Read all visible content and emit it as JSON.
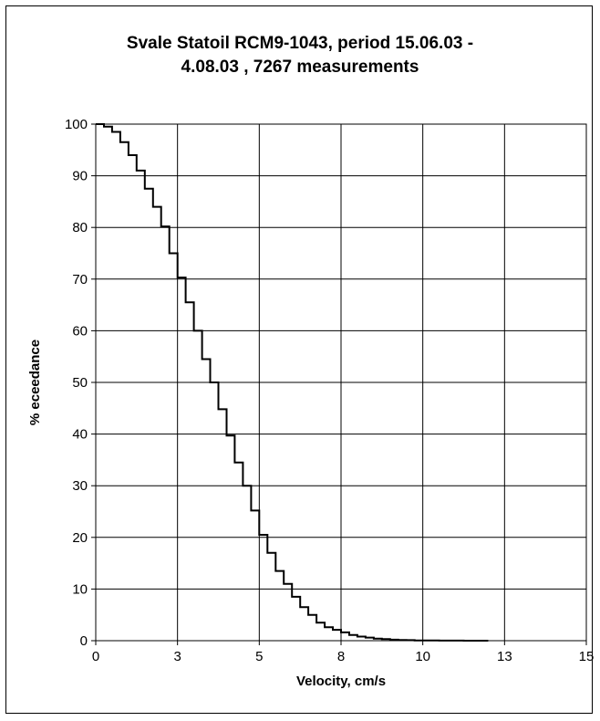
{
  "chart_data": {
    "type": "line",
    "title_line1": "Svale Statoil RCM9-1043,  period 15.06.03 -",
    "title_line2": "4.08.03 , 7267  measurements",
    "xlabel": "Velocity, cm/s",
    "ylabel": "% eceedance",
    "xlim": [
      0,
      15
    ],
    "ylim": [
      0,
      100
    ],
    "x_tick_labels": [
      "0",
      "3",
      "5",
      "8",
      "10",
      "13",
      "15"
    ],
    "x_tick_values": [
      0,
      2.5,
      5,
      7.5,
      10,
      12.5,
      15
    ],
    "y_ticks": [
      0,
      10,
      20,
      30,
      40,
      50,
      60,
      70,
      80,
      90,
      100
    ],
    "grid": true,
    "legend": "none",
    "line_color": "#000000",
    "series": [
      {
        "step": "after",
        "x": [
          0,
          0.25,
          0.5,
          0.75,
          1.0,
          1.25,
          1.5,
          1.75,
          2.0,
          2.25,
          2.5,
          2.75,
          3.0,
          3.25,
          3.5,
          3.75,
          4.0,
          4.25,
          4.5,
          4.75,
          5.0,
          5.25,
          5.5,
          5.75,
          6.0,
          6.25,
          6.5,
          6.75,
          7.0,
          7.25,
          7.5,
          7.75,
          8.0,
          8.25,
          8.5,
          8.75,
          9.0,
          9.25,
          9.5,
          9.75,
          10.0,
          10.25,
          10.5,
          10.75,
          11.0,
          11.25,
          11.5,
          11.75
        ],
        "y": [
          100,
          99.5,
          98.5,
          96.5,
          94,
          91,
          87.5,
          84,
          80.2,
          75,
          70.3,
          65.5,
          60,
          54.5,
          50,
          44.8,
          39.7,
          34.5,
          30,
          25.2,
          20.5,
          17,
          13.5,
          11,
          8.5,
          6.5,
          5,
          3.5,
          2.6,
          2.1,
          1.6,
          1.1,
          0.8,
          0.6,
          0.4,
          0.3,
          0.2,
          0.15,
          0.1,
          0.05,
          0.05,
          0.03,
          0.02,
          0.01,
          0.01,
          0.0,
          0.0,
          0.0
        ]
      }
    ]
  }
}
